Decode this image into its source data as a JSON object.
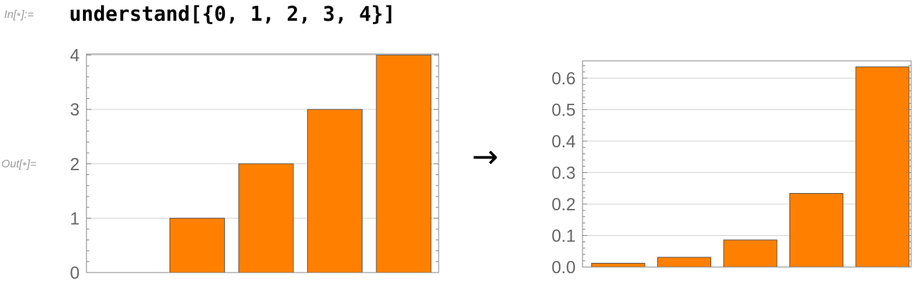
{
  "notebook": {
    "in_label": "In[",
    "out_label": "Out[",
    "label_suffix_in": "]:=",
    "label_suffix_out": "]=",
    "label_dot": "●",
    "input_code": "understand[{0, 1, 2, 3, 4}]",
    "arrow": "→"
  },
  "colors": {
    "bar_fill": "#ff8000",
    "bar_stroke": "#555555",
    "frame": "#808080",
    "grid": "#d0d0d0",
    "tick_label": "#666666"
  },
  "chart_data": [
    {
      "type": "bar",
      "values": [
        0,
        1,
        2,
        3,
        4
      ],
      "yticks": [
        "0",
        "1",
        "2",
        "3",
        "4"
      ],
      "ylim": [
        0,
        4.02
      ],
      "grid": true
    },
    {
      "type": "bar",
      "values": [
        0.012,
        0.031,
        0.086,
        0.234,
        0.636
      ],
      "yticks": [
        "0.0",
        "0.1",
        "0.2",
        "0.3",
        "0.4",
        "0.5",
        "0.6"
      ],
      "ylim": [
        0,
        0.655
      ],
      "grid": true
    }
  ]
}
